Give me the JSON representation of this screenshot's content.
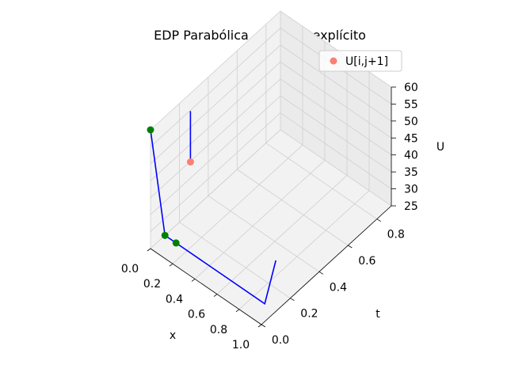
{
  "chart_data": {
    "type": "line",
    "projection": "3d",
    "title": "EDP Parabólica - Método explícito",
    "xlabel": "x",
    "ylabel": "t",
    "zlabel": "U",
    "xlim": [
      0.0,
      1.0
    ],
    "ylim": [
      0.0,
      0.9
    ],
    "zlim": [
      25,
      60
    ],
    "xticks": [
      "0.0",
      "0.2",
      "0.4",
      "0.6",
      "0.8",
      "1.0"
    ],
    "yticks": [
      "0.0",
      "0.2",
      "0.4",
      "0.6",
      "0.8"
    ],
    "zticks": [
      "25",
      "30",
      "35",
      "40",
      "45",
      "50",
      "55",
      "60"
    ],
    "grid": true,
    "legend": {
      "position": "top-right",
      "entries": [
        "U[i,j+1]"
      ]
    },
    "colors": {
      "line": "#0000ff",
      "known_point": "#008000",
      "new_point": "#fa8072"
    },
    "lines": [
      {
        "x": [
          0.0,
          0.0,
          0.1,
          0.9,
          1.0
        ],
        "t": [
          0.0,
          0.1,
          0.1,
          0.1,
          0.1
        ],
        "u": [
          60,
          25,
          25,
          25,
          40
        ]
      },
      {
        "x": [
          0.1,
          0.1
        ],
        "t": [
          0.2,
          0.2
        ],
        "u": [
          60,
          45
        ]
      }
    ],
    "known_points": {
      "x": [
        0.0,
        0.0,
        0.1
      ],
      "t": [
        0.0,
        0.1,
        0.1
      ],
      "u": [
        60,
        25,
        25
      ]
    },
    "new_point": {
      "x": 0.1,
      "t": 0.2,
      "u": 45
    }
  }
}
